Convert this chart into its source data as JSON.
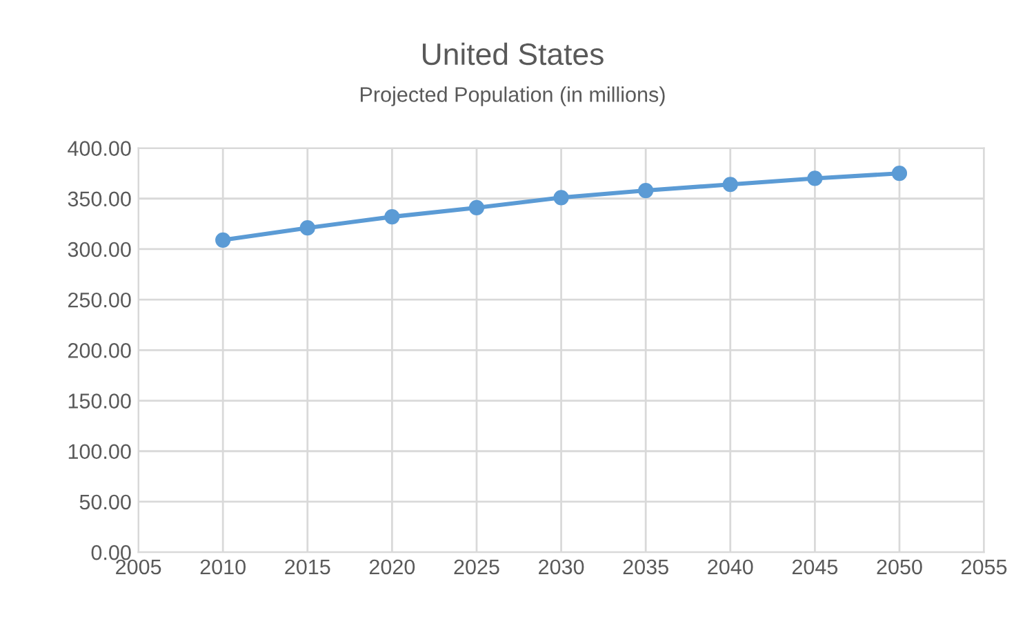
{
  "chart_data": {
    "type": "line",
    "title": "United States",
    "subtitle": "Projected Population (in millions)",
    "x": [
      2010,
      2015,
      2020,
      2025,
      2030,
      2035,
      2040,
      2045,
      2050
    ],
    "series": [
      {
        "color": "#5b9bd5",
        "values": [
          309,
          321,
          332,
          341,
          351,
          358,
          364,
          370,
          375
        ]
      }
    ],
    "xlim": [
      2005,
      2055
    ],
    "xticks": [
      2005,
      2010,
      2015,
      2020,
      2025,
      2030,
      2035,
      2040,
      2045,
      2050,
      2055
    ],
    "ylim": [
      0,
      400
    ],
    "yticks": [
      {
        "value": 0,
        "label": "0.00"
      },
      {
        "value": 50,
        "label": "50.00"
      },
      {
        "value": 100,
        "label": "100.00"
      },
      {
        "value": 150,
        "label": "150.00"
      },
      {
        "value": 200,
        "label": "200.00"
      },
      {
        "value": 250,
        "label": "250.00"
      },
      {
        "value": 300,
        "label": "300.00"
      },
      {
        "value": 350,
        "label": "350.00"
      },
      {
        "value": 400,
        "label": "400.00"
      }
    ],
    "grid": true,
    "marker": "circle",
    "line_style": "solid",
    "legend": false
  }
}
